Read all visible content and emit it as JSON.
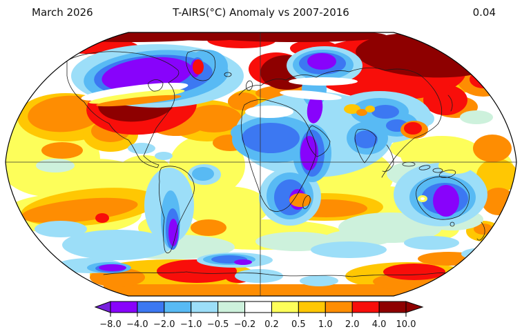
{
  "header": {
    "period": "March 2026",
    "title": "T-AIRS(°C) Anomaly vs 2007-2016",
    "value": "0.04"
  },
  "chart_data": {
    "type": "heatmap",
    "subtype": "global temperature anomaly map",
    "title": "T-AIRS(°C) Anomaly vs 2007-2016",
    "period": "March 2026",
    "variable": "T-AIRS",
    "units": "°C",
    "baseline": "2007-2016",
    "global_mean_anomaly_c": 0.04,
    "projection": "Robinson",
    "graticule": [
      "equator",
      "central meridian"
    ],
    "colorbar": {
      "orientation": "horizontal",
      "levels": [
        -8,
        -4,
        -2,
        -1,
        -0.5,
        -0.2,
        0.2,
        0.5,
        1,
        2,
        4,
        10
      ],
      "tick_labels": [
        "−8.0",
        "−4.0",
        "−2.0",
        "−1.0",
        "−0.5",
        "−0.2",
        "0.2",
        "0.5",
        "1.0",
        "2.0",
        "4.0",
        "10.0"
      ],
      "segment_colors": [
        "#8803fb",
        "#3c78f2",
        "#58baf4",
        "#9cdef8",
        "#cdf1dc",
        "#ffffff",
        "#fdfe5a",
        "#ffc703",
        "#fe8d02",
        "#f80e0a",
        "#8e0000"
      ],
      "under_arrow_color": "#7721dd",
      "over_arrow_color": "#8e0000"
    },
    "regional_anomalies": [
      {
        "region": "Canadian Arctic / Northern Canada",
        "anomaly_c": "-8 to -4"
      },
      {
        "region": "Western and Central United States",
        "anomaly_c": "+4 to +10"
      },
      {
        "region": "Arctic rim along map top edge",
        "anomaly_c": "+4 to +10"
      },
      {
        "region": "Scandinavia / Western Russia",
        "anomaly_c": "+4 to +10"
      },
      {
        "region": "Northeastern Siberia",
        "anomaly_c": "+4 to +10"
      },
      {
        "region": "Kara Sea north of Siberia",
        "anomaly_c": "-8 to -4"
      },
      {
        "region": "North Africa / Sahara",
        "anomaly_c": "-2 to -1"
      },
      {
        "region": "Middle East (Turkey / Iraq)",
        "anomaly_c": "-8 to -4"
      },
      {
        "region": "Northeast and Central Africa",
        "anomaly_c": "-8 to -2"
      },
      {
        "region": "Southern Africa interior",
        "anomaly_c": "-4 to -2"
      },
      {
        "region": "Central Asia / India / China",
        "anomaly_c": "-2 to -0.5"
      },
      {
        "region": "Australian interior",
        "anomaly_c": "-8 to -4"
      },
      {
        "region": "Patagonia",
        "anomaly_c": "-8 to -4"
      },
      {
        "region": "North Pacific and North Atlantic subtropics",
        "anomaly_c": "+1 to +2"
      },
      {
        "region": "Antarctic coastline",
        "anomaly_c": "+2 to +4"
      }
    ]
  }
}
